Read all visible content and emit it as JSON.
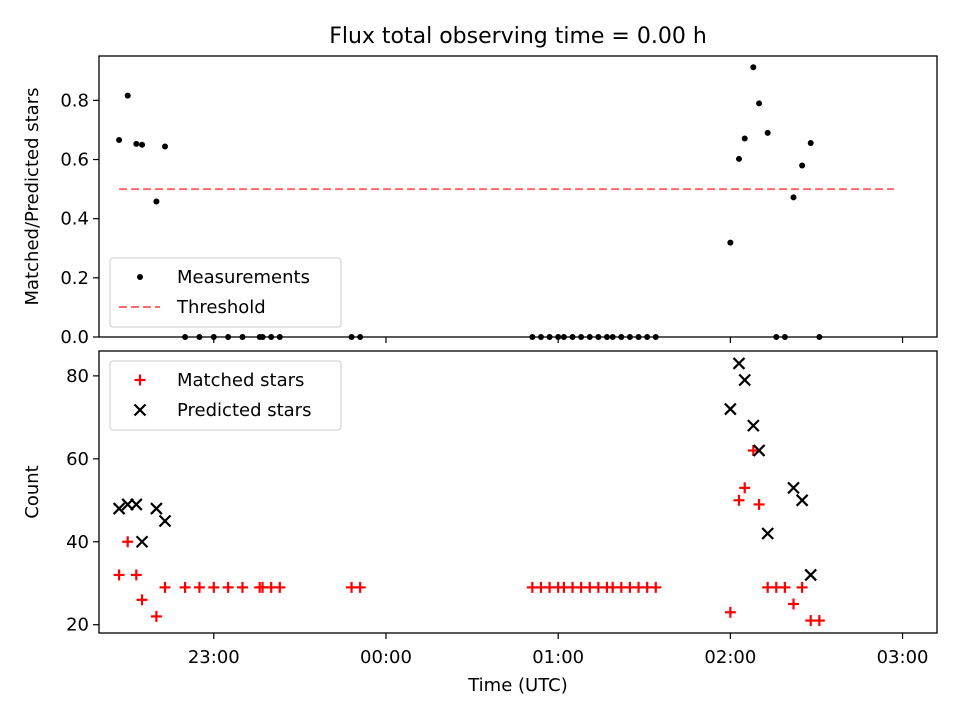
{
  "chart_data": [
    {
      "type": "scatter",
      "title": "Flux total observing time = 0.00 h",
      "ylabel": "Matched/Predicted stars",
      "xlabel": "",
      "ylim": [
        0,
        0.95
      ],
      "yticks": [
        0.0,
        0.2,
        0.4,
        0.6,
        0.8
      ],
      "ytick_labels": [
        "0.0",
        "0.2",
        "0.4",
        "0.6",
        "0.8"
      ],
      "xlim": [
        "22:20",
        "03:12"
      ],
      "legend_position": "lower-left",
      "series": [
        {
          "name": "Measurements",
          "marker": "dot",
          "color": "#000000",
          "x": [
            "22:27",
            "22:30",
            "22:33",
            "22:35",
            "22:40",
            "22:43",
            "22:50",
            "22:55",
            "23:00",
            "23:05",
            "23:10",
            "23:16",
            "23:17",
            "23:20",
            "23:23",
            "23:48",
            "23:51",
            "00:51",
            "00:54",
            "00:57",
            "01:00",
            "01:02",
            "01:05",
            "01:08",
            "01:11",
            "01:14",
            "01:17",
            "01:19",
            "01:22",
            "01:25",
            "01:28",
            "01:31",
            "01:34",
            "02:00",
            "02:03",
            "02:05",
            "02:08",
            "02:10",
            "02:13",
            "02:16",
            "02:19",
            "02:22",
            "02:25",
            "02:28",
            "02:31"
          ],
          "y": [
            0.666,
            0.816,
            0.653,
            0.65,
            0.458,
            0.644,
            0.0,
            0.0,
            0.0,
            0.0,
            0.0,
            0.0,
            0.0,
            0.0,
            0.0,
            0.0,
            0.0,
            0.0,
            0.0,
            0.0,
            0.0,
            0.0,
            0.0,
            0.0,
            0.0,
            0.0,
            0.0,
            0.0,
            0.0,
            0.0,
            0.0,
            0.0,
            0.0,
            0.319,
            0.602,
            0.671,
            0.912,
            0.79,
            0.69,
            0.0,
            0.0,
            0.472,
            0.58,
            0.656,
            0.0
          ]
        },
        {
          "name": "Threshold",
          "line": "dashed",
          "color": "#ff6b6b",
          "x": [
            "22:27",
            "02:57"
          ],
          "y": [
            0.5,
            0.5
          ]
        }
      ]
    },
    {
      "type": "scatter",
      "title": "",
      "ylabel": "Count",
      "xlabel": "Time (UTC)",
      "ylim": [
        18,
        86
      ],
      "yticks": [
        20,
        40,
        60,
        80
      ],
      "ytick_labels": [
        "20",
        "40",
        "60",
        "80"
      ],
      "xticks": [
        "23:00",
        "00:00",
        "01:00",
        "02:00",
        "03:00"
      ],
      "xtick_labels": [
        "23:00",
        "00:00",
        "01:00",
        "02:00",
        "03:00"
      ],
      "xlim": [
        "22:20",
        "03:12"
      ],
      "legend_position": "upper-left",
      "series": [
        {
          "name": "Matched stars",
          "marker": "plus",
          "color": "#ff0000",
          "x": [
            "22:27",
            "22:30",
            "22:33",
            "22:35",
            "22:40",
            "22:43",
            "22:50",
            "22:55",
            "23:00",
            "23:05",
            "23:10",
            "23:16",
            "23:17",
            "23:20",
            "23:23",
            "23:48",
            "23:51",
            "00:51",
            "00:54",
            "00:57",
            "01:00",
            "01:02",
            "01:05",
            "01:08",
            "01:11",
            "01:14",
            "01:17",
            "01:19",
            "01:22",
            "01:25",
            "01:28",
            "01:31",
            "01:34",
            "02:00",
            "02:03",
            "02:05",
            "02:08",
            "02:10",
            "02:13",
            "02:16",
            "02:19",
            "02:22",
            "02:25",
            "02:28",
            "02:31"
          ],
          "y": [
            32,
            40,
            32,
            26,
            22,
            29,
            29,
            29,
            29,
            29,
            29,
            29,
            29,
            29,
            29,
            29,
            29,
            29,
            29,
            29,
            29,
            29,
            29,
            29,
            29,
            29,
            29,
            29,
            29,
            29,
            29,
            29,
            29,
            23,
            50,
            53,
            62,
            49,
            29,
            29,
            29,
            25,
            29,
            21,
            21
          ]
        },
        {
          "name": "Predicted stars",
          "marker": "x",
          "color": "#000000",
          "x": [
            "22:27",
            "22:30",
            "22:33",
            "22:35",
            "22:40",
            "22:43",
            "02:00",
            "02:03",
            "02:05",
            "02:08",
            "02:10",
            "02:13",
            "02:22",
            "02:25",
            "02:28"
          ],
          "y": [
            48,
            49,
            49,
            40,
            48,
            45,
            72,
            83,
            79,
            68,
            62,
            42,
            53,
            50,
            32
          ]
        }
      ]
    }
  ]
}
